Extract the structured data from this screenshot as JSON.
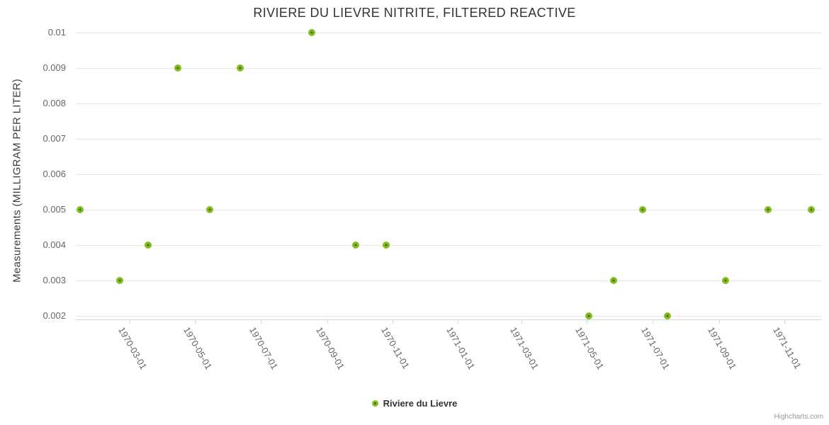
{
  "chart_data": {
    "type": "scatter",
    "title": "RIVIERE DU LIEVRE NITRITE, FILTERED REACTIVE",
    "xlabel": "",
    "ylabel": "Measurements (MILLIGRAM PER LITER)",
    "ylim": [
      0.002,
      0.01
    ],
    "yticks": [
      0.002,
      0.003,
      0.004,
      0.005,
      0.006,
      0.007,
      0.008,
      0.009,
      0.01
    ],
    "xlim": [
      "1970-01-10",
      "1971-12-06"
    ],
    "xticks": [
      "1970-03-01",
      "1970-05-01",
      "1970-07-01",
      "1970-09-01",
      "1970-11-01",
      "1971-01-01",
      "1971-03-01",
      "1971-05-01",
      "1971-07-01",
      "1971-09-01",
      "1971-11-01"
    ],
    "grid": true,
    "legend_position": "bottom-center",
    "series": [
      {
        "name": "Riviere du Lievre",
        "points": [
          {
            "date": "1970-01-14",
            "value": 0.005
          },
          {
            "date": "1970-02-20",
            "value": 0.003
          },
          {
            "date": "1970-03-18",
            "value": 0.004
          },
          {
            "date": "1970-04-15",
            "value": 0.009
          },
          {
            "date": "1970-05-15",
            "value": 0.005
          },
          {
            "date": "1970-06-12",
            "value": 0.009
          },
          {
            "date": "1970-08-18",
            "value": 0.01
          },
          {
            "date": "1970-09-28",
            "value": 0.004
          },
          {
            "date": "1970-10-26",
            "value": 0.004
          },
          {
            "date": "1971-05-03",
            "value": 0.002
          },
          {
            "date": "1971-05-26",
            "value": 0.003
          },
          {
            "date": "1971-06-22",
            "value": 0.005
          },
          {
            "date": "1971-07-15",
            "value": 0.002
          },
          {
            "date": "1971-09-07",
            "value": 0.003
          },
          {
            "date": "1971-10-17",
            "value": 0.005
          },
          {
            "date": "1971-11-26",
            "value": 0.005
          }
        ]
      }
    ]
  },
  "credits": "Highcharts.com",
  "colors": {
    "marker_fill": "#85bc1e",
    "marker_center": "#3f6e04",
    "grid": "#e6e6e6",
    "axis": "#ccd6eb",
    "title_text": "#333333",
    "label_text": "#666666",
    "legend_text": "#333333",
    "credits_text": "#999999"
  }
}
